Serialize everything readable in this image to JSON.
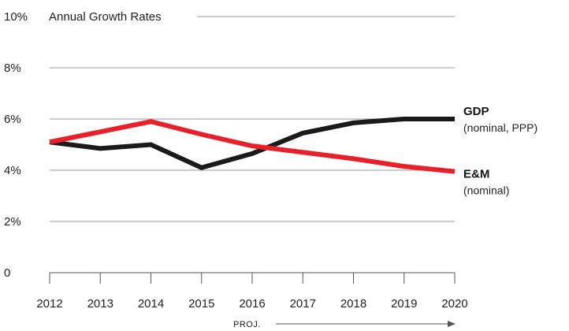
{
  "chart_data": {
    "type": "line",
    "title": "Annual Growth Rates",
    "x": [
      "2012",
      "2013",
      "2014",
      "2015",
      "2016",
      "2017",
      "2018",
      "2019",
      "2020"
    ],
    "ylim": [
      0,
      10
    ],
    "yticks": [
      "0",
      "2%",
      "4%",
      "6%",
      "8%",
      "10%"
    ],
    "grid": true,
    "series": [
      {
        "name": "GDP",
        "subtitle": "(nominal, PPP)",
        "color": "#1a1a1a",
        "values": [
          5.1,
          4.85,
          5.0,
          4.1,
          4.65,
          5.45,
          5.85,
          6.0,
          6.0
        ]
      },
      {
        "name": "E&M",
        "subtitle": "(nominal)",
        "color": "#e8202a",
        "values": [
          5.1,
          5.5,
          5.9,
          5.4,
          4.95,
          4.7,
          4.45,
          4.15,
          3.95
        ]
      }
    ],
    "annotation": "PROJ."
  }
}
